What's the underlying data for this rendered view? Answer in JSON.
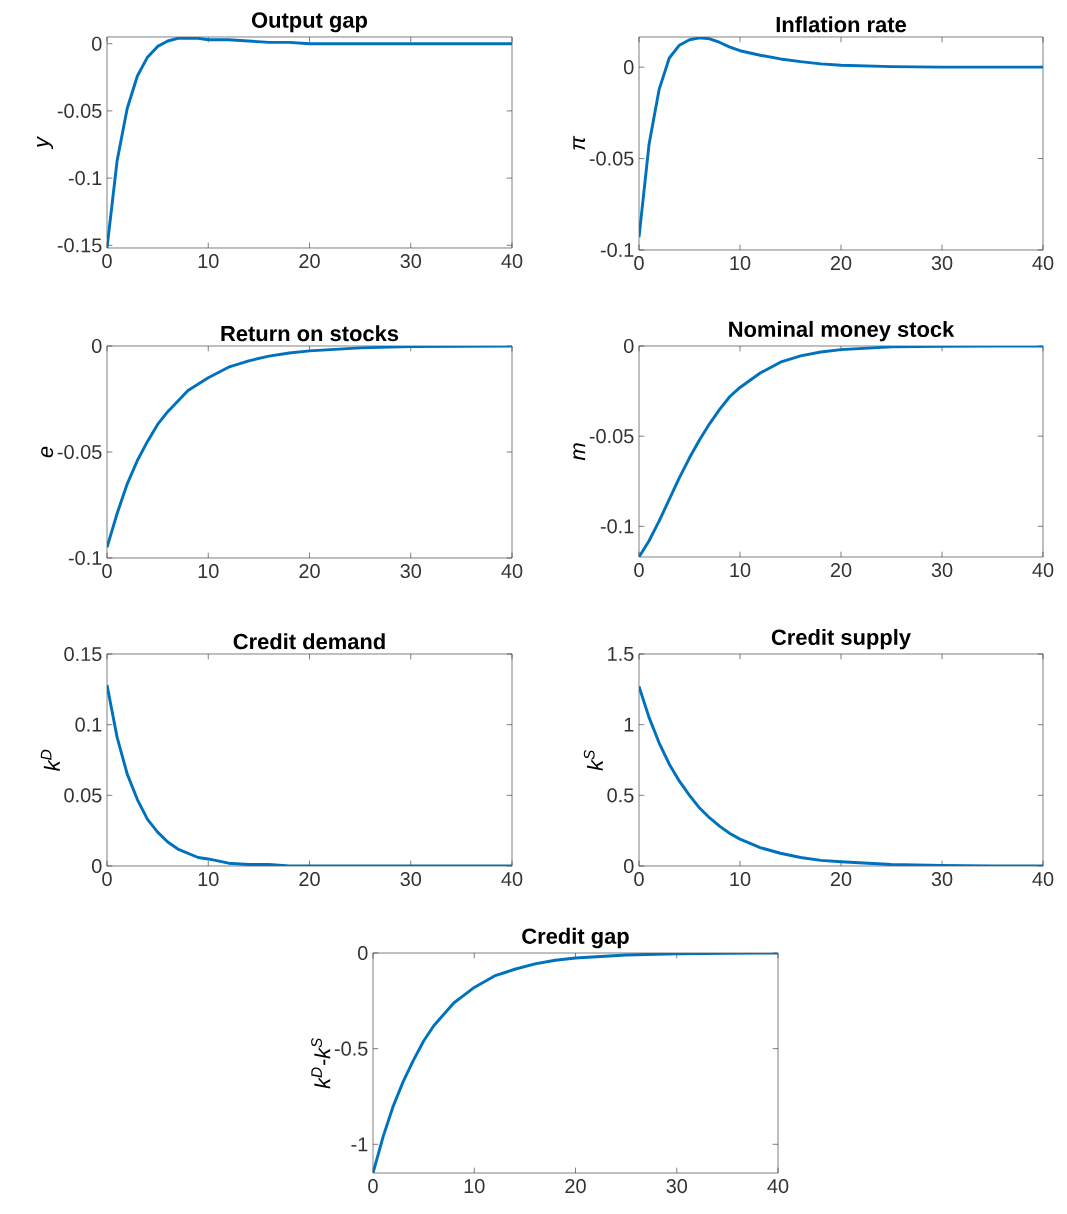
{
  "chart_data": [
    {
      "type": "line",
      "title": "Output gap",
      "ylabel": "y",
      "color": "#0072bd",
      "x": [
        0,
        1,
        2,
        3,
        4,
        5,
        6,
        7,
        8,
        9,
        10,
        12,
        14,
        16,
        18,
        20,
        25,
        30,
        35,
        40
      ],
      "values": [
        -0.152,
        -0.087,
        -0.048,
        -0.024,
        -0.01,
        -0.002,
        0.002,
        0.004,
        0.004,
        0.004,
        0.003,
        0.003,
        0.002,
        0.001,
        0.001,
        0,
        0,
        0,
        0,
        0
      ],
      "xlim": [
        0,
        40
      ],
      "ylim": [
        -0.152,
        0.005
      ],
      "xticks": [
        0,
        10,
        20,
        30,
        40
      ],
      "yticks": [
        -0.15,
        -0.1,
        -0.05,
        0
      ]
    },
    {
      "type": "line",
      "title": "Inflation rate",
      "ylabel": "π",
      "color": "#0072bd",
      "x": [
        0,
        1,
        2,
        3,
        4,
        5,
        6,
        7,
        8,
        9,
        10,
        12,
        14,
        16,
        18,
        20,
        25,
        30,
        35,
        40
      ],
      "values": [
        -0.093,
        -0.042,
        -0.012,
        0.005,
        0.012,
        0.015,
        0.016,
        0.0155,
        0.0135,
        0.011,
        0.009,
        0.0065,
        0.0045,
        0.003,
        0.0018,
        0.001,
        0.0003,
        0,
        0,
        0
      ],
      "xlim": [
        0,
        40
      ],
      "ylim": [
        -0.1,
        0.0165
      ],
      "xticks": [
        0,
        10,
        20,
        30,
        40
      ],
      "yticks": [
        -0.1,
        -0.05,
        0
      ]
    },
    {
      "type": "line",
      "title": "Return on stocks",
      "ylabel": "e",
      "color": "#0072bd",
      "x": [
        0,
        1,
        2,
        3,
        4,
        5,
        6,
        7,
        8,
        9,
        10,
        12,
        14,
        16,
        18,
        20,
        25,
        30,
        35,
        40
      ],
      "values": [
        -0.095,
        -0.079,
        -0.065,
        -0.054,
        -0.045,
        -0.037,
        -0.031,
        -0.026,
        -0.021,
        -0.018,
        -0.015,
        -0.01,
        -0.007,
        -0.0048,
        -0.0033,
        -0.0023,
        -0.0009,
        -0.0003,
        -0.0001,
        0
      ],
      "xlim": [
        0,
        40
      ],
      "ylim": [
        -0.1,
        0
      ],
      "xticks": [
        0,
        10,
        20,
        30,
        40
      ],
      "yticks": [
        -0.1,
        -0.05,
        0
      ]
    },
    {
      "type": "line",
      "title": "Nominal money stock",
      "ylabel": "m",
      "color": "#0072bd",
      "x": [
        0,
        1,
        2,
        3,
        4,
        5,
        6,
        7,
        8,
        9,
        10,
        12,
        14,
        16,
        18,
        20,
        25,
        30,
        35,
        40
      ],
      "values": [
        -0.117,
        -0.108,
        -0.097,
        -0.085,
        -0.073,
        -0.062,
        -0.052,
        -0.043,
        -0.035,
        -0.028,
        -0.023,
        -0.015,
        -0.009,
        -0.0055,
        -0.0033,
        -0.002,
        -0.0005,
        -0.0001,
        0,
        0
      ],
      "xlim": [
        0,
        40
      ],
      "ylim": [
        -0.117,
        0
      ],
      "xticks": [
        0,
        10,
        20,
        30,
        40
      ],
      "yticks": [
        -0.1,
        -0.05,
        0
      ]
    },
    {
      "type": "line",
      "title": "Credit demand",
      "ylabel": "k$^{D}$",
      "color": "#0072bd",
      "x": [
        0,
        1,
        2,
        3,
        4,
        5,
        6,
        7,
        8,
        9,
        10,
        12,
        14,
        16,
        18,
        20,
        25,
        30,
        35,
        40
      ],
      "values": [
        0.128,
        0.091,
        0.065,
        0.047,
        0.033,
        0.024,
        0.017,
        0.012,
        0.009,
        0.006,
        0.005,
        0.002,
        0.001,
        0.001,
        0,
        0,
        0,
        0,
        0,
        0
      ],
      "xlim": [
        0,
        40
      ],
      "ylim": [
        0,
        0.15
      ],
      "xticks": [
        0,
        10,
        20,
        30,
        40
      ],
      "yticks": [
        0,
        0.05,
        0.1,
        0.15
      ]
    },
    {
      "type": "line",
      "title": "Credit supply",
      "ylabel": "k$^{S}$",
      "color": "#0072bd",
      "x": [
        0,
        1,
        2,
        3,
        4,
        5,
        6,
        7,
        8,
        9,
        10,
        12,
        14,
        16,
        18,
        20,
        25,
        30,
        35,
        40
      ],
      "values": [
        1.27,
        1.05,
        0.87,
        0.72,
        0.6,
        0.5,
        0.41,
        0.34,
        0.28,
        0.23,
        0.19,
        0.13,
        0.09,
        0.06,
        0.04,
        0.03,
        0.01,
        0.004,
        0.001,
        0
      ],
      "xlim": [
        0,
        40
      ],
      "ylim": [
        0,
        1.5
      ],
      "xticks": [
        0,
        10,
        20,
        30,
        40
      ],
      "yticks": [
        0,
        0.5,
        1,
        1.5
      ]
    },
    {
      "type": "line",
      "title": "Credit gap",
      "ylabel": "k$^{D}$-k$^{S}$",
      "color": "#0072bd",
      "x": [
        0,
        1,
        2,
        3,
        4,
        5,
        6,
        7,
        8,
        9,
        10,
        12,
        14,
        16,
        18,
        20,
        25,
        30,
        35,
        40
      ],
      "values": [
        -1.15,
        -0.96,
        -0.8,
        -0.67,
        -0.56,
        -0.46,
        -0.38,
        -0.32,
        -0.26,
        -0.22,
        -0.18,
        -0.12,
        -0.085,
        -0.057,
        -0.038,
        -0.026,
        -0.01,
        -0.004,
        -0.001,
        0
      ],
      "xlim": [
        0,
        40
      ],
      "ylim": [
        -1.15,
        0
      ],
      "xticks": [
        0,
        10,
        20,
        30,
        40
      ],
      "yticks": [
        -1,
        -0.5,
        0
      ]
    }
  ]
}
